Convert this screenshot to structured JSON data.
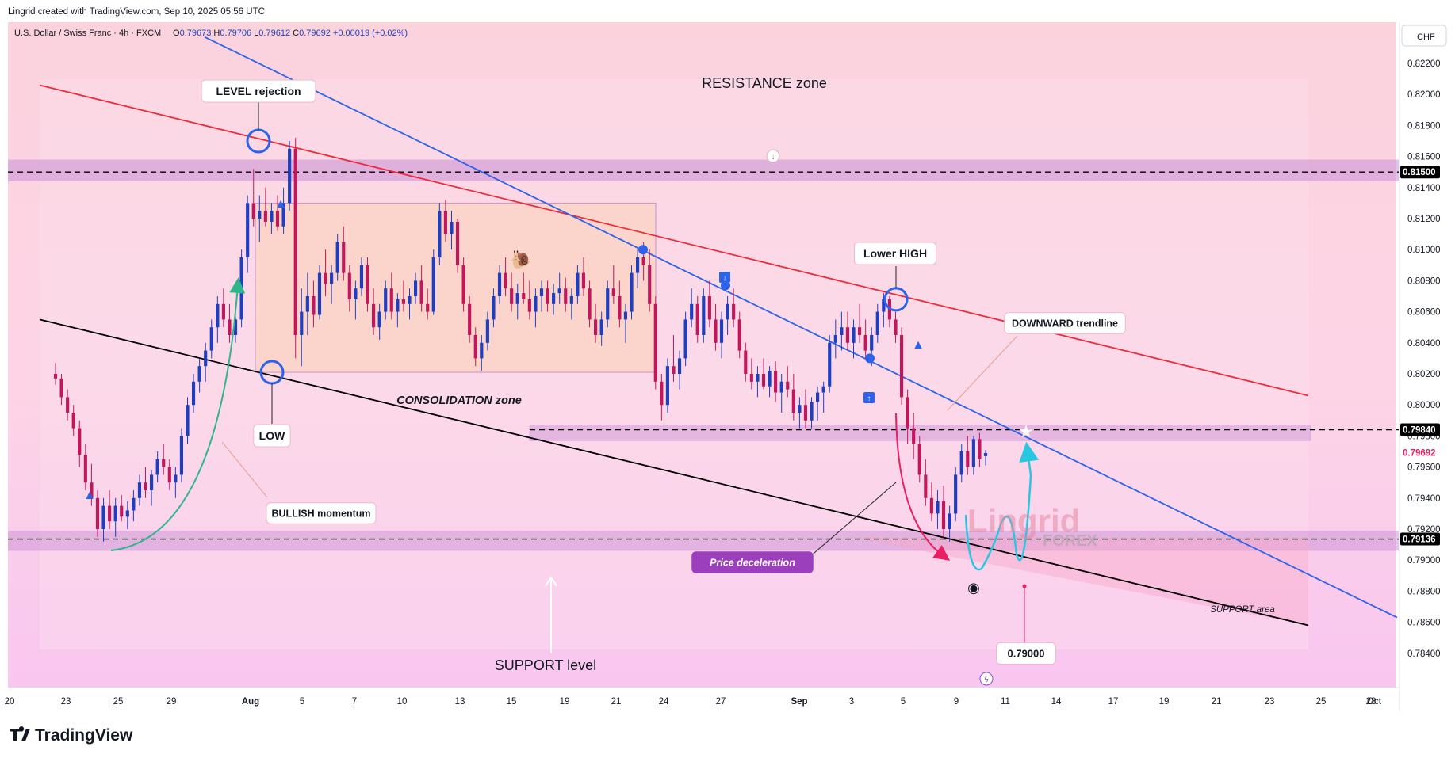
{
  "header": {
    "credit": "Lingrid created with TradingView.com, Sep 10, 2025 05:56 UTC",
    "symbol_line": "U.S. Dollar / Swiss Franc · 4h · FXCM",
    "ohlc": [
      {
        "k": "O",
        "v": "0.79673"
      },
      {
        "k": "H",
        "v": "0.79706"
      },
      {
        "k": "L",
        "v": "0.79612"
      },
      {
        "k": "C",
        "v": "0.79692"
      }
    ],
    "change": "+0.00019 (+0.02%)"
  },
  "currency_button": "CHF",
  "footer_logo": "TradingView",
  "watermark": {
    "main": "Lingrid",
    "sub": "FOREX"
  },
  "colors": {
    "up": "#1f3fbf",
    "down": "#c2185b",
    "resistance_line": "#ef2b3b",
    "blue_trendline": "#2d63ea",
    "support_line": "#000000",
    "band": "#c98fd6",
    "price_badge": "#e91e63",
    "arrow_teal": "#2fb58a",
    "arrow_cyan": "#29c6e0"
  },
  "chart_data": {
    "type": "candlestick",
    "symbol": "USDCHF",
    "timeframe": "4h",
    "y_axis": {
      "ylim": [
        0.7835,
        0.8237
      ],
      "ticks": [
        "0.82200",
        "0.82000",
        "0.81800",
        "0.81600",
        "0.81400",
        "0.81200",
        "0.81000",
        "0.80800",
        "0.80600",
        "0.80400",
        "0.80200",
        "0.80000",
        "0.79800",
        "0.79600",
        "0.79400",
        "0.79200",
        "0.79000",
        "0.78800",
        "0.78600",
        "0.78400"
      ]
    },
    "x_axis": {
      "labels": [
        "20",
        "23",
        "25",
        "29",
        "Aug",
        "5",
        "7",
        "10",
        "13",
        "15",
        "19",
        "21",
        "24",
        "27",
        "Sep",
        "3",
        "5",
        "9",
        "11",
        "14",
        "17",
        "19",
        "21",
        "23",
        "25",
        "28",
        "Oct"
      ]
    },
    "price_labels": [
      {
        "value": "0.81500",
        "style": "black"
      },
      {
        "value": "0.79840",
        "style": "black"
      },
      {
        "value": "0.79692",
        "style": "pink"
      },
      {
        "value": "0.79136",
        "style": "black"
      }
    ],
    "horizontal_levels": [
      0.815,
      0.7984,
      0.79136
    ],
    "zones": [
      {
        "name": "resistance band",
        "from": 0.8144,
        "to": 0.8158
      },
      {
        "name": "mid band",
        "from": 0.7977,
        "to": 0.7987
      },
      {
        "name": "support band",
        "from": 0.7906,
        "to": 0.7919
      },
      {
        "name": "consolidation box",
        "from": 0.8021,
        "to": 0.813
      }
    ],
    "trendlines": [
      {
        "name": "upper red line",
        "from": {
          "x": "Jul 19",
          "y": 0.8206
        },
        "to": {
          "x": "Sep 28",
          "y": 0.8006
        }
      },
      {
        "name": "blue downward trendline",
        "from": {
          "x": "Jul 29",
          "y": 0.8237
        },
        "to": {
          "x": "Oct 1",
          "y": 0.7863
        }
      },
      {
        "name": "black support line",
        "from": {
          "x": "Jul 19",
          "y": 0.8055
        },
        "to": {
          "x": "Sep 28",
          "y": 0.7858
        }
      }
    ],
    "candles": [
      [
        0.802,
        0.8027,
        0.8013,
        0.8017
      ],
      [
        0.8017,
        0.802,
        0.8,
        0.8005
      ],
      [
        0.8005,
        0.801,
        0.799,
        0.7995
      ],
      [
        0.7995,
        0.8,
        0.798,
        0.7985
      ],
      [
        0.7985,
        0.799,
        0.796,
        0.7968
      ],
      [
        0.7968,
        0.7975,
        0.7945,
        0.795
      ],
      [
        0.795,
        0.7962,
        0.7935,
        0.794
      ],
      [
        0.794,
        0.7945,
        0.7915,
        0.792
      ],
      [
        0.792,
        0.794,
        0.7912,
        0.7935
      ],
      [
        0.7935,
        0.7945,
        0.792,
        0.7925
      ],
      [
        0.7925,
        0.794,
        0.7915,
        0.7935
      ],
      [
        0.7935,
        0.7942,
        0.7925,
        0.7928
      ],
      [
        0.7928,
        0.7938,
        0.792,
        0.7932
      ],
      [
        0.7932,
        0.7945,
        0.7925,
        0.794
      ],
      [
        0.794,
        0.7955,
        0.7935,
        0.795
      ],
      [
        0.795,
        0.796,
        0.794,
        0.7945
      ],
      [
        0.7945,
        0.7958,
        0.7935,
        0.7955
      ],
      [
        0.7955,
        0.797,
        0.795,
        0.7965
      ],
      [
        0.7965,
        0.7975,
        0.7955,
        0.796
      ],
      [
        0.796,
        0.7965,
        0.7945,
        0.795
      ],
      [
        0.795,
        0.796,
        0.794,
        0.7955
      ],
      [
        0.7955,
        0.7985,
        0.795,
        0.798
      ],
      [
        0.798,
        0.8005,
        0.7975,
        0.8
      ],
      [
        0.8,
        0.802,
        0.7995,
        0.8015
      ],
      [
        0.8015,
        0.803,
        0.8008,
        0.8025
      ],
      [
        0.8025,
        0.804,
        0.8015,
        0.8035
      ],
      [
        0.8035,
        0.8055,
        0.803,
        0.805
      ],
      [
        0.805,
        0.807,
        0.804,
        0.8065
      ],
      [
        0.8065,
        0.8075,
        0.805,
        0.8055
      ],
      [
        0.8055,
        0.8065,
        0.804,
        0.8045
      ],
      [
        0.8045,
        0.806,
        0.804,
        0.8055
      ],
      [
        0.8055,
        0.81,
        0.805,
        0.8095
      ],
      [
        0.8095,
        0.8135,
        0.8085,
        0.813
      ],
      [
        0.813,
        0.8152,
        0.8115,
        0.812
      ],
      [
        0.812,
        0.8135,
        0.8105,
        0.8125
      ],
      [
        0.8125,
        0.814,
        0.8115,
        0.8118
      ],
      [
        0.8118,
        0.813,
        0.811,
        0.8125
      ],
      [
        0.8125,
        0.8135,
        0.8112,
        0.8115
      ],
      [
        0.8115,
        0.814,
        0.811,
        0.813
      ],
      [
        0.813,
        0.817,
        0.8125,
        0.8165
      ],
      [
        0.8165,
        0.8172,
        0.803,
        0.8045
      ],
      [
        0.8045,
        0.8075,
        0.8025,
        0.806
      ],
      [
        0.806,
        0.8085,
        0.8045,
        0.807
      ],
      [
        0.807,
        0.808,
        0.805,
        0.8058
      ],
      [
        0.8058,
        0.809,
        0.8055,
        0.8085
      ],
      [
        0.8085,
        0.81,
        0.807,
        0.8078
      ],
      [
        0.8078,
        0.809,
        0.8065,
        0.8085
      ],
      [
        0.8085,
        0.811,
        0.808,
        0.8105
      ],
      [
        0.8105,
        0.8115,
        0.808,
        0.8085
      ],
      [
        0.8085,
        0.809,
        0.806,
        0.8068
      ],
      [
        0.8068,
        0.808,
        0.8055,
        0.8075
      ],
      [
        0.8075,
        0.8095,
        0.807,
        0.809
      ],
      [
        0.809,
        0.8095,
        0.806,
        0.8065
      ],
      [
        0.8065,
        0.8075,
        0.8045,
        0.805
      ],
      [
        0.805,
        0.8065,
        0.8042,
        0.806
      ],
      [
        0.806,
        0.808,
        0.8055,
        0.8075
      ],
      [
        0.8075,
        0.8085,
        0.8055,
        0.806
      ],
      [
        0.806,
        0.8072,
        0.805,
        0.8068
      ],
      [
        0.8068,
        0.808,
        0.806,
        0.8065
      ],
      [
        0.8065,
        0.8075,
        0.8055,
        0.807
      ],
      [
        0.807,
        0.8085,
        0.8065,
        0.808
      ],
      [
        0.808,
        0.809,
        0.806,
        0.8065
      ],
      [
        0.8065,
        0.8075,
        0.8055,
        0.806
      ],
      [
        0.806,
        0.81,
        0.8058,
        0.8095
      ],
      [
        0.8095,
        0.813,
        0.809,
        0.8125
      ],
      [
        0.8125,
        0.8132,
        0.8105,
        0.811
      ],
      [
        0.811,
        0.8125,
        0.81,
        0.8118
      ],
      [
        0.8118,
        0.812,
        0.8085,
        0.809
      ],
      [
        0.809,
        0.8095,
        0.806,
        0.8065
      ],
      [
        0.8065,
        0.807,
        0.804,
        0.8045
      ],
      [
        0.8045,
        0.805,
        0.8025,
        0.803
      ],
      [
        0.803,
        0.8045,
        0.8022,
        0.804
      ],
      [
        0.804,
        0.806,
        0.8035,
        0.8055
      ],
      [
        0.8055,
        0.8075,
        0.805,
        0.807
      ],
      [
        0.807,
        0.809,
        0.8065,
        0.8085
      ],
      [
        0.8085,
        0.8095,
        0.807,
        0.8075
      ],
      [
        0.8075,
        0.8085,
        0.806,
        0.8065
      ],
      [
        0.8065,
        0.8078,
        0.8055,
        0.8072
      ],
      [
        0.8072,
        0.8085,
        0.8065,
        0.8068
      ],
      [
        0.8068,
        0.808,
        0.8055,
        0.806
      ],
      [
        0.806,
        0.8075,
        0.805,
        0.807
      ],
      [
        0.807,
        0.808,
        0.806,
        0.8075
      ],
      [
        0.8075,
        0.808,
        0.806,
        0.8065
      ],
      [
        0.8065,
        0.8078,
        0.8058,
        0.8072
      ],
      [
        0.8072,
        0.8085,
        0.8065,
        0.8075
      ],
      [
        0.8075,
        0.8082,
        0.806,
        0.8065
      ],
      [
        0.8065,
        0.8075,
        0.8055,
        0.807
      ],
      [
        0.807,
        0.809,
        0.8065,
        0.8085
      ],
      [
        0.8085,
        0.8095,
        0.807,
        0.8075
      ],
      [
        0.8075,
        0.808,
        0.805,
        0.8055
      ],
      [
        0.8055,
        0.8065,
        0.804,
        0.8045
      ],
      [
        0.8045,
        0.806,
        0.8038,
        0.8055
      ],
      [
        0.8055,
        0.808,
        0.805,
        0.8075
      ],
      [
        0.8075,
        0.809,
        0.8065,
        0.807
      ],
      [
        0.807,
        0.808,
        0.805,
        0.8055
      ],
      [
        0.8055,
        0.8065,
        0.804,
        0.806
      ],
      [
        0.806,
        0.809,
        0.8055,
        0.8085
      ],
      [
        0.8085,
        0.81,
        0.8075,
        0.8095
      ],
      [
        0.8095,
        0.8105,
        0.808,
        0.809
      ],
      [
        0.809,
        0.81,
        0.806,
        0.8065
      ],
      [
        0.8065,
        0.807,
        0.801,
        0.8015
      ],
      [
        0.8015,
        0.802,
        0.799,
        0.8
      ],
      [
        0.8,
        0.803,
        0.7995,
        0.8025
      ],
      [
        0.8025,
        0.8045,
        0.8015,
        0.802
      ],
      [
        0.802,
        0.8035,
        0.801,
        0.803
      ],
      [
        0.803,
        0.806,
        0.8025,
        0.8055
      ],
      [
        0.8055,
        0.8075,
        0.805,
        0.8065
      ],
      [
        0.8065,
        0.807,
        0.804,
        0.8045
      ],
      [
        0.8045,
        0.8075,
        0.804,
        0.807
      ],
      [
        0.807,
        0.808,
        0.805,
        0.8055
      ],
      [
        0.8055,
        0.8065,
        0.8035,
        0.804
      ],
      [
        0.804,
        0.806,
        0.803,
        0.8055
      ],
      [
        0.8055,
        0.807,
        0.8045,
        0.8065
      ],
      [
        0.8065,
        0.8075,
        0.805,
        0.8055
      ],
      [
        0.8055,
        0.806,
        0.803,
        0.8035
      ],
      [
        0.8035,
        0.804,
        0.8015,
        0.802
      ],
      [
        0.802,
        0.803,
        0.801,
        0.8015
      ],
      [
        0.8015,
        0.8025,
        0.8005,
        0.802
      ],
      [
        0.802,
        0.803,
        0.801,
        0.8012
      ],
      [
        0.8012,
        0.8025,
        0.8005,
        0.8022
      ],
      [
        0.8022,
        0.8028,
        0.8002,
        0.8008
      ],
      [
        0.8008,
        0.802,
        0.7995,
        0.8015
      ],
      [
        0.8015,
        0.8025,
        0.8005,
        0.801
      ],
      [
        0.801,
        0.802,
        0.799,
        0.7995
      ],
      [
        0.7995,
        0.8005,
        0.7985,
        0.8
      ],
      [
        0.8,
        0.801,
        0.7985,
        0.799
      ],
      [
        0.799,
        0.8005,
        0.7985,
        0.8002
      ],
      [
        0.8002,
        0.8012,
        0.799,
        0.8008
      ],
      [
        0.8008,
        0.8015,
        0.7995,
        0.8012
      ],
      [
        0.8012,
        0.8045,
        0.8008,
        0.804
      ],
      [
        0.804,
        0.8055,
        0.803,
        0.8045
      ],
      [
        0.8045,
        0.806,
        0.8035,
        0.805
      ],
      [
        0.805,
        0.806,
        0.8035,
        0.804
      ],
      [
        0.804,
        0.8055,
        0.803,
        0.805
      ],
      [
        0.805,
        0.8065,
        0.804,
        0.8045
      ],
      [
        0.8045,
        0.8055,
        0.803,
        0.8035
      ],
      [
        0.8035,
        0.805,
        0.8025,
        0.8045
      ],
      [
        0.8045,
        0.8065,
        0.804,
        0.806
      ],
      [
        0.806,
        0.8072,
        0.805,
        0.8068
      ],
      [
        0.8068,
        0.807,
        0.805,
        0.8055
      ],
      [
        0.8055,
        0.806,
        0.804,
        0.8045
      ],
      [
        0.8045,
        0.805,
        0.8,
        0.8005
      ],
      [
        0.8005,
        0.801,
        0.7975,
        0.7985
      ],
      [
        0.7985,
        0.7995,
        0.7965,
        0.7975
      ],
      [
        0.7975,
        0.798,
        0.795,
        0.7955
      ],
      [
        0.7955,
        0.7965,
        0.7935,
        0.794
      ],
      [
        0.794,
        0.795,
        0.7925,
        0.793
      ],
      [
        0.793,
        0.7945,
        0.792,
        0.7938
      ],
      [
        0.7938,
        0.7948,
        0.7915,
        0.792
      ],
      [
        0.792,
        0.7935,
        0.7912,
        0.793
      ],
      [
        0.793,
        0.796,
        0.7925,
        0.7955
      ],
      [
        0.7955,
        0.7975,
        0.795,
        0.797
      ],
      [
        0.797,
        0.798,
        0.7955,
        0.796
      ],
      [
        0.796,
        0.798,
        0.7955,
        0.7978
      ],
      [
        0.7978,
        0.7982,
        0.796,
        0.7965
      ],
      [
        0.7967,
        0.7971,
        0.7961,
        0.7969
      ]
    ]
  },
  "annotations": {
    "level_rejection": "LEVEL rejection",
    "resistance_zone": "RESISTANCE zone",
    "lower_high": "Lower HIGH",
    "downward_trendline": "DOWNWARD trendline",
    "consolidation_zone": "CONSOLIDATION zone",
    "low": "LOW",
    "bullish_momentum": "BULLISH momentum",
    "price_deceleration": "Price deceleration",
    "support_level": "SUPPORT level",
    "support_area": "SUPPORT area",
    "target": "0.79000"
  }
}
